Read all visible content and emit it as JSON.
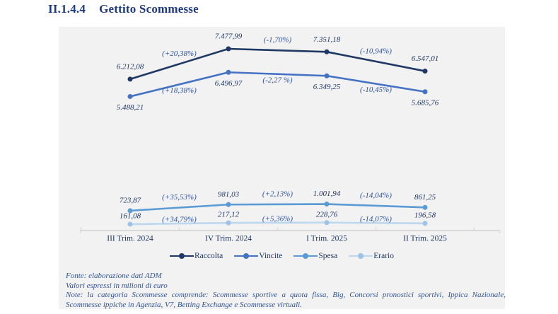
{
  "header": {
    "section": "II.1.4.4",
    "title": "Gettito Scommesse"
  },
  "chart_data": {
    "type": "line",
    "title": "Gettito Scommesse",
    "categories": [
      "III Trim. 2024",
      "IV Trim. 2024",
      "I Trim. 2025",
      "II Trim. 2025"
    ],
    "series": [
      {
        "name": "Raccolta",
        "color": "#1f3864",
        "values": [
          6212.08,
          7477.99,
          7351.18,
          6547.01
        ],
        "value_labels": [
          "6.212,08",
          "7.477,99",
          "7.351,18",
          "6.547,01"
        ],
        "pct_labels": [
          "(+20,38%)",
          "(-1,70%)",
          "(-10,94%)"
        ]
      },
      {
        "name": "Vincite",
        "color": "#4472c4",
        "values": [
          5488.21,
          6496.97,
          6349.25,
          5685.76
        ],
        "value_labels": [
          "5.488,21",
          "6.496,97",
          "6.349,25",
          "5.685,76"
        ],
        "pct_labels": [
          "(+18,38%)",
          "(-2,27 %)",
          "(-10,45%)"
        ]
      },
      {
        "name": "Spesa",
        "color": "#5b9bd5",
        "values": [
          723.87,
          981.03,
          1001.94,
          861.25
        ],
        "value_labels": [
          "723,87",
          "981,03",
          "1.001,94",
          "861,25"
        ],
        "pct_labels": [
          "(+35,53%)",
          "(+2,13%)",
          "(-14,04%)"
        ]
      },
      {
        "name": "Erario",
        "color": "#bdd7ee",
        "dot_color": "#9dc3e6",
        "values": [
          161.08,
          217.12,
          228.76,
          196.58
        ],
        "value_labels": [
          "161,08",
          "217,12",
          "228,76",
          "196,58"
        ],
        "pct_labels": [
          "(+34,79%)",
          "(+5,36%)",
          "(-14,07%)"
        ]
      }
    ],
    "xlabel": "",
    "ylabel": "",
    "ylim": [
      0,
      8400
    ],
    "grid": false,
    "legend_position": "bottom"
  },
  "notes": {
    "fonte": "Fonte: elaborazione dati ADM",
    "valori": "Valori espressi in milioni di euro",
    "nota": "Note: la categoria Scommesse comprende: Scommesse sportive a quota fissa, Big, Concorsi pronostici sportivi, Ippica Nazionale, Scommesse ippiche in Agenzia, V7, Betting Exchange e Scommesse virtuali."
  },
  "colors": {
    "title_text": "#1d3a80",
    "value_text": "#1f3864",
    "pct_text": "#2f5496",
    "axis_line": "#d9d9d9",
    "panel_bg": "#f2f2f2"
  }
}
